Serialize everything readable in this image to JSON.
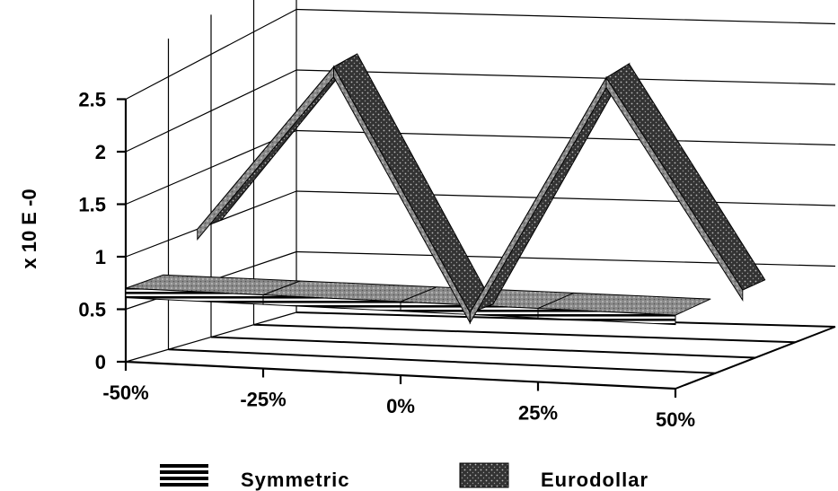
{
  "chart_data": {
    "type": "line",
    "title": "",
    "ylabel": "x 10 E -0",
    "xlabel": "",
    "x": [
      "-50%",
      "-25%",
      "0%",
      "25%",
      "50%"
    ],
    "y_ticks": [
      "0",
      "0.5",
      "1",
      "1.5",
      "2",
      "2.5"
    ],
    "ylim": [
      0,
      2.5
    ],
    "grid": true,
    "legend": {
      "placement": "bottom"
    },
    "series": [
      {
        "name": "Symmetric",
        "values": [
          0.7,
          0.7,
          0.7,
          0.7,
          0.7
        ],
        "pattern": "horizontal-stripes",
        "color": "#000000"
      },
      {
        "name": "Eurodollar",
        "values": [
          1.0,
          2.5,
          0.35,
          2.5,
          0.65
        ],
        "pattern": "stipple",
        "color": "#2a2a2a"
      }
    ]
  }
}
